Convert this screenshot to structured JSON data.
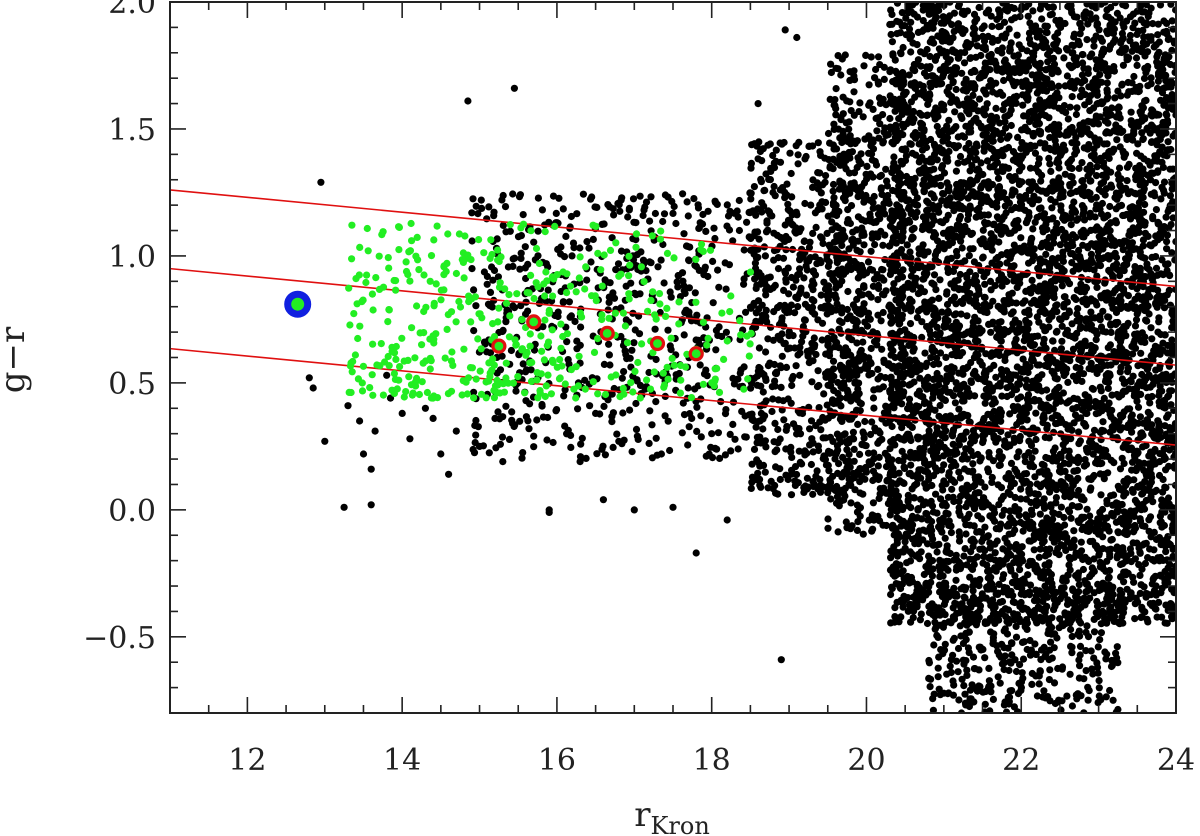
{
  "chart_data": {
    "type": "scatter",
    "xlabel": "r",
    "xlabel_sub": "Kron",
    "ylabel": "g−r",
    "xlim": [
      11,
      24
    ],
    "ylim": [
      -0.8,
      2.0
    ],
    "xticks": [
      12,
      14,
      16,
      18,
      20,
      22,
      24
    ],
    "xtick_labels": [
      "12",
      "14",
      "16",
      "18",
      "20",
      "22",
      "24"
    ],
    "yticks": [
      -0.5,
      0.0,
      0.5,
      1.0,
      1.5,
      2.0
    ],
    "ytick_labels": [
      "−0.5",
      "0.0",
      "0.5",
      "1.0",
      "1.5",
      "2.0"
    ],
    "grid": false,
    "colors": {
      "field": "#000000",
      "members": "#22ee22",
      "highlight_ring": "#e01010",
      "bcg_ring": "#1020e0",
      "lines": "#e01010"
    },
    "lines": [
      {
        "x": [
          11,
          24
        ],
        "y": [
          1.26,
          0.88
        ]
      },
      {
        "x": [
          11,
          24
        ],
        "y": [
          0.95,
          0.57
        ]
      },
      {
        "x": [
          11,
          24
        ],
        "y": [
          0.635,
          0.255
        ]
      }
    ],
    "highlighted": {
      "x": [
        15.25,
        15.7,
        16.65,
        17.3,
        17.8
      ],
      "y": [
        0.645,
        0.74,
        0.695,
        0.655,
        0.615
      ]
    },
    "bcg": {
      "x": [
        12.65
      ],
      "y": [
        0.81
      ]
    },
    "field_sparse": {
      "x": [
        12.8,
        12.85,
        12.95,
        13.0,
        13.25,
        13.3,
        13.45,
        13.5,
        13.6,
        13.6,
        13.65,
        13.8,
        13.85,
        14.0,
        14.1,
        14.3,
        14.4,
        14.5,
        14.6,
        14.7,
        14.85,
        14.9,
        15.0,
        15.2,
        15.3,
        15.45,
        15.6,
        15.7,
        15.9,
        15.9,
        16.1,
        16.3,
        16.5,
        16.6,
        16.8,
        17.0,
        17.2,
        17.35,
        17.5,
        17.8,
        18.0,
        18.2,
        18.6,
        18.9,
        18.95,
        19.1
      ],
      "y": [
        0.52,
        0.48,
        1.29,
        0.27,
        0.01,
        0.41,
        0.35,
        0.22,
        0.16,
        0.02,
        0.31,
        0.53,
        0.44,
        0.38,
        0.28,
        0.4,
        0.36,
        0.22,
        0.14,
        0.31,
        1.61,
        1.17,
        0.25,
        0.36,
        0.19,
        1.66,
        0.43,
        0.29,
        0.0,
        -0.01,
        0.33,
        0.19,
        0.38,
        0.04,
        0.27,
        0.0,
        0.39,
        0.22,
        0.01,
        -0.17,
        0.3,
        -0.04,
        1.6,
        -0.59,
        1.89,
        1.86
      ]
    },
    "field_density": {
      "seed": 7,
      "regions": [
        {
          "x": [
            14.9,
            18.7
          ],
          "y": [
            0.2,
            1.25
          ],
          "count": 650
        },
        {
          "x": [
            18.5,
            20.0
          ],
          "y": [
            0.05,
            1.45
          ],
          "count": 650
        },
        {
          "x": [
            19.5,
            20.5
          ],
          "y": [
            -0.1,
            1.8
          ],
          "count": 650
        },
        {
          "x": [
            20.3,
            24.0
          ],
          "y": [
            -0.45,
            2.0
          ],
          "count": 5200
        },
        {
          "x": [
            20.8,
            23.3
          ],
          "y": [
            -0.8,
            -0.3
          ],
          "count": 360
        }
      ]
    },
    "members": {
      "seed": 3,
      "x_range": [
        13.3,
        18.7
      ],
      "y_range": [
        0.44,
        1.13
      ],
      "count": 430
    }
  }
}
